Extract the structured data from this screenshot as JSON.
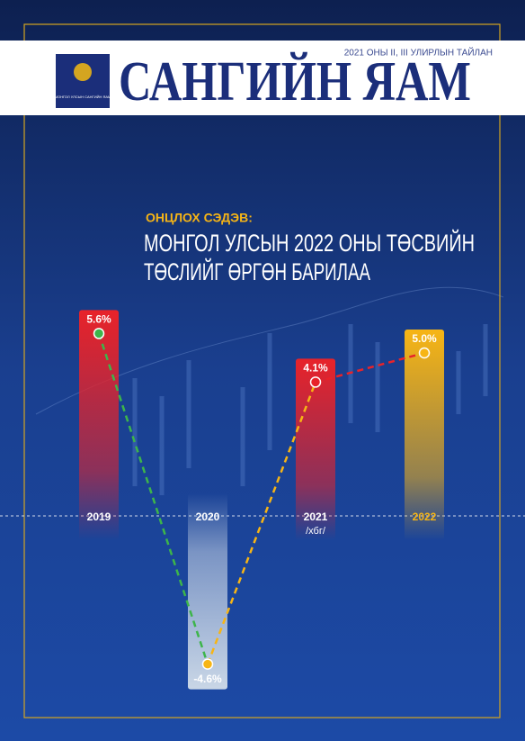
{
  "header": {
    "report": "2021 ОНЫ II, III УЛИРЛЫН ТАЙЛАН",
    "title": "САНГИЙН ЯАМ",
    "logo_text": "МОНГОЛ УЛСЫН САНГИЙН ЯАМ"
  },
  "feature": {
    "label": "ОНЦЛОХ СЭДЭВ:",
    "headline": [
      "МОНГОЛ УЛСЫН 2022 ОНЫ ТӨСВИЙН",
      "ТӨСЛИЙГ ӨРГӨН БАРИЛАА"
    ]
  },
  "chart_data": {
    "type": "line",
    "categories": [
      "2019",
      "2020",
      "2021",
      "2022"
    ],
    "values": [
      5.6,
      -4.6,
      4.1,
      5.0
    ],
    "value_labels": [
      "5.6%",
      "-4.6%",
      "4.1%",
      "5.0%"
    ],
    "colors": [
      "#e8232a",
      "#c9d6e6",
      "#e8232a",
      "#f7b515"
    ],
    "annotation": "/хбг/"
  }
}
